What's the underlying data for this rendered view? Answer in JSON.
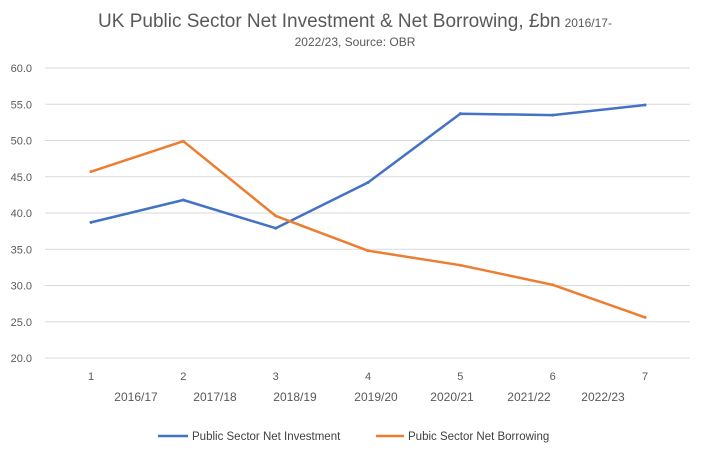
{
  "chart_data": {
    "type": "line",
    "title_main": "UK Public Sector Net Investment & Net Borrowing, £bn",
    "title_small": "2016/17-",
    "title_line2": "2022/23, Source: OBR",
    "x": [
      "1",
      "2",
      "3",
      "4",
      "5",
      "6",
      "7"
    ],
    "period_labels": [
      "2016/17",
      "2017/18",
      "2018/19",
      "2019/20",
      "2020/21",
      "2021/22",
      "2022/23"
    ],
    "y_ticks": [
      "20.0",
      "25.0",
      "30.0",
      "35.0",
      "40.0",
      "45.0",
      "50.0",
      "55.0",
      "60.0"
    ],
    "ylim": [
      20,
      60
    ],
    "grid": true,
    "legend_position": "bottom",
    "series": [
      {
        "name": "Public Sector Net Investment",
        "color": "#4472C4",
        "values": [
          38.7,
          41.8,
          37.9,
          44.2,
          53.7,
          53.5,
          54.9
        ]
      },
      {
        "name": "Pubic Sector Net Borrowing",
        "color": "#ED7D31",
        "values": [
          45.7,
          49.9,
          39.6,
          34.8,
          32.8,
          30.1,
          25.6
        ]
      }
    ]
  }
}
